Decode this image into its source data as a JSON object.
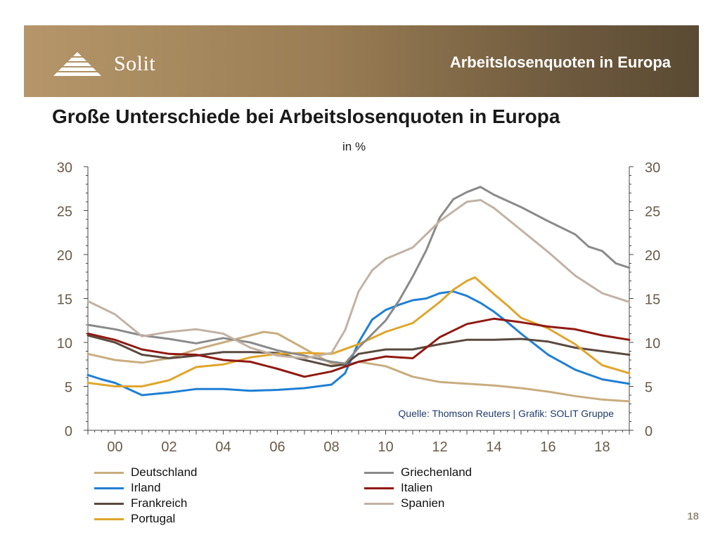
{
  "header": {
    "brand": "Solit",
    "section_title": "Arbeitslosenquoten in Europa"
  },
  "headline": "Große Unterschiede bei Arbeitslosenquoten in Europa",
  "page_number": "18",
  "chart_data": {
    "type": "line",
    "title": "",
    "unit_label": "in %",
    "source_note": "Quelle: Thomson Reuters | Grafik: SOLIT Gruppe",
    "xlim": [
      1999.0,
      2019.0
    ],
    "ylim": [
      0,
      30
    ],
    "y_ticks": [
      0,
      5,
      10,
      15,
      20,
      25,
      30
    ],
    "x_ticks": [
      {
        "value": 2000,
        "label": "00"
      },
      {
        "value": 2002,
        "label": "02"
      },
      {
        "value": 2004,
        "label": "04"
      },
      {
        "value": 2006,
        "label": "06"
      },
      {
        "value": 2008,
        "label": "08"
      },
      {
        "value": 2010,
        "label": "10"
      },
      {
        "value": 2012,
        "label": "12"
      },
      {
        "value": 2014,
        "label": "14"
      },
      {
        "value": 2016,
        "label": "16"
      },
      {
        "value": 2018,
        "label": "18"
      }
    ],
    "legend_placement": "bottom",
    "series": [
      {
        "name": "Deutschland",
        "color": "#c9ad7f",
        "x": [
          1999.0,
          2000.0,
          2001.0,
          2002.0,
          2003.0,
          2004.0,
          2005.0,
          2005.5,
          2006.0,
          2007.0,
          2008.0,
          2008.5,
          2009.0,
          2010.0,
          2011.0,
          2012.0,
          2013.0,
          2014.0,
          2015.0,
          2016.0,
          2017.0,
          2018.0,
          2019.0
        ],
        "y": [
          8.7,
          8.0,
          7.7,
          8.2,
          9.2,
          10.0,
          10.8,
          11.2,
          11.0,
          9.3,
          7.6,
          7.4,
          7.8,
          7.3,
          6.1,
          5.5,
          5.3,
          5.1,
          4.8,
          4.4,
          3.9,
          3.5,
          3.3
        ]
      },
      {
        "name": "Irland",
        "color": "#1f7fd4",
        "x": [
          1999.0,
          1999.5,
          2000.0,
          2001.0,
          2002.0,
          2003.0,
          2004.0,
          2005.0,
          2006.0,
          2007.0,
          2008.0,
          2008.5,
          2009.0,
          2009.5,
          2010.0,
          2010.5,
          2011.0,
          2011.5,
          2012.0,
          2012.5,
          2013.0,
          2013.5,
          2014.0,
          2014.5,
          2015.0,
          2015.5,
          2016.0,
          2017.0,
          2018.0,
          2019.0
        ],
        "y": [
          6.3,
          5.8,
          5.4,
          4.0,
          4.3,
          4.7,
          4.7,
          4.5,
          4.6,
          4.8,
          5.2,
          6.5,
          10.0,
          12.6,
          13.7,
          14.3,
          14.8,
          15.0,
          15.6,
          15.8,
          15.3,
          14.5,
          13.5,
          12.3,
          11.0,
          9.8,
          8.6,
          6.9,
          5.8,
          5.3
        ]
      },
      {
        "name": "Frankreich",
        "color": "#5a4a3f",
        "x": [
          1999.0,
          2000.0,
          2001.0,
          2002.0,
          2003.0,
          2004.0,
          2005.0,
          2006.0,
          2007.0,
          2008.0,
          2008.5,
          2009.0,
          2010.0,
          2011.0,
          2012.0,
          2013.0,
          2014.0,
          2015.0,
          2016.0,
          2017.0,
          2018.0,
          2019.0
        ],
        "y": [
          10.8,
          10.0,
          8.6,
          8.2,
          8.5,
          8.9,
          8.9,
          8.8,
          8.0,
          7.3,
          7.5,
          8.7,
          9.2,
          9.2,
          9.8,
          10.3,
          10.3,
          10.4,
          10.1,
          9.4,
          9.0,
          8.6
        ]
      },
      {
        "name": "Portugal",
        "color": "#e0a52b",
        "x": [
          1999.0,
          2000.0,
          2001.0,
          2002.0,
          2003.0,
          2004.0,
          2005.0,
          2006.0,
          2007.0,
          2008.0,
          2009.0,
          2010.0,
          2011.0,
          2012.0,
          2012.5,
          2013.0,
          2013.3,
          2014.0,
          2014.5,
          2015.0,
          2016.0,
          2017.0,
          2018.0,
          2019.0
        ],
        "y": [
          5.4,
          5.0,
          5.0,
          5.7,
          7.2,
          7.5,
          8.3,
          8.7,
          8.8,
          8.7,
          9.8,
          11.2,
          12.2,
          14.6,
          16.0,
          17.0,
          17.4,
          15.5,
          14.2,
          12.8,
          11.6,
          9.8,
          7.4,
          6.5
        ]
      },
      {
        "name": "Griechenland",
        "color": "#8a8a8a",
        "x": [
          1999.0,
          2000.0,
          2001.0,
          2002.0,
          2003.0,
          2004.0,
          2005.0,
          2006.0,
          2007.0,
          2008.0,
          2008.5,
          2009.0,
          2010.0,
          2010.5,
          2011.0,
          2011.5,
          2012.0,
          2012.5,
          2013.0,
          2013.5,
          2014.0,
          2015.0,
          2016.0,
          2017.0,
          2017.5,
          2018.0,
          2018.5,
          2019.0
        ],
        "y": [
          12.0,
          11.5,
          10.8,
          10.4,
          9.9,
          10.5,
          10.0,
          9.1,
          8.5,
          7.8,
          7.6,
          9.4,
          12.5,
          14.8,
          17.5,
          20.5,
          24.2,
          26.3,
          27.1,
          27.7,
          26.8,
          25.4,
          23.8,
          22.3,
          20.9,
          20.4,
          19.0,
          18.5
        ]
      },
      {
        "name": "Italien",
        "color": "#8f1a12",
        "x": [
          1999.0,
          2000.0,
          2001.0,
          2002.0,
          2003.0,
          2004.0,
          2005.0,
          2006.0,
          2007.0,
          2008.0,
          2009.0,
          2010.0,
          2011.0,
          2012.0,
          2013.0,
          2014.0,
          2015.0,
          2016.0,
          2017.0,
          2018.0,
          2019.0
        ],
        "y": [
          11.0,
          10.3,
          9.2,
          8.7,
          8.6,
          8.0,
          7.8,
          7.0,
          6.1,
          6.7,
          7.8,
          8.4,
          8.2,
          10.6,
          12.1,
          12.7,
          12.3,
          11.8,
          11.5,
          10.8,
          10.3
        ]
      },
      {
        "name": "Spanien",
        "color": "#c2b2a4",
        "x": [
          1999.0,
          2000.0,
          2001.0,
          2002.0,
          2003.0,
          2004.0,
          2005.0,
          2006.0,
          2007.0,
          2008.0,
          2008.5,
          2009.0,
          2009.5,
          2010.0,
          2011.0,
          2012.0,
          2013.0,
          2013.5,
          2014.0,
          2015.0,
          2016.0,
          2017.0,
          2018.0,
          2019.0
        ],
        "y": [
          14.7,
          13.2,
          10.7,
          11.2,
          11.5,
          11.0,
          9.4,
          8.5,
          8.2,
          8.8,
          11.4,
          15.8,
          18.2,
          19.5,
          20.8,
          23.8,
          26.0,
          26.2,
          25.3,
          22.8,
          20.3,
          17.6,
          15.6,
          14.6
        ]
      }
    ]
  }
}
